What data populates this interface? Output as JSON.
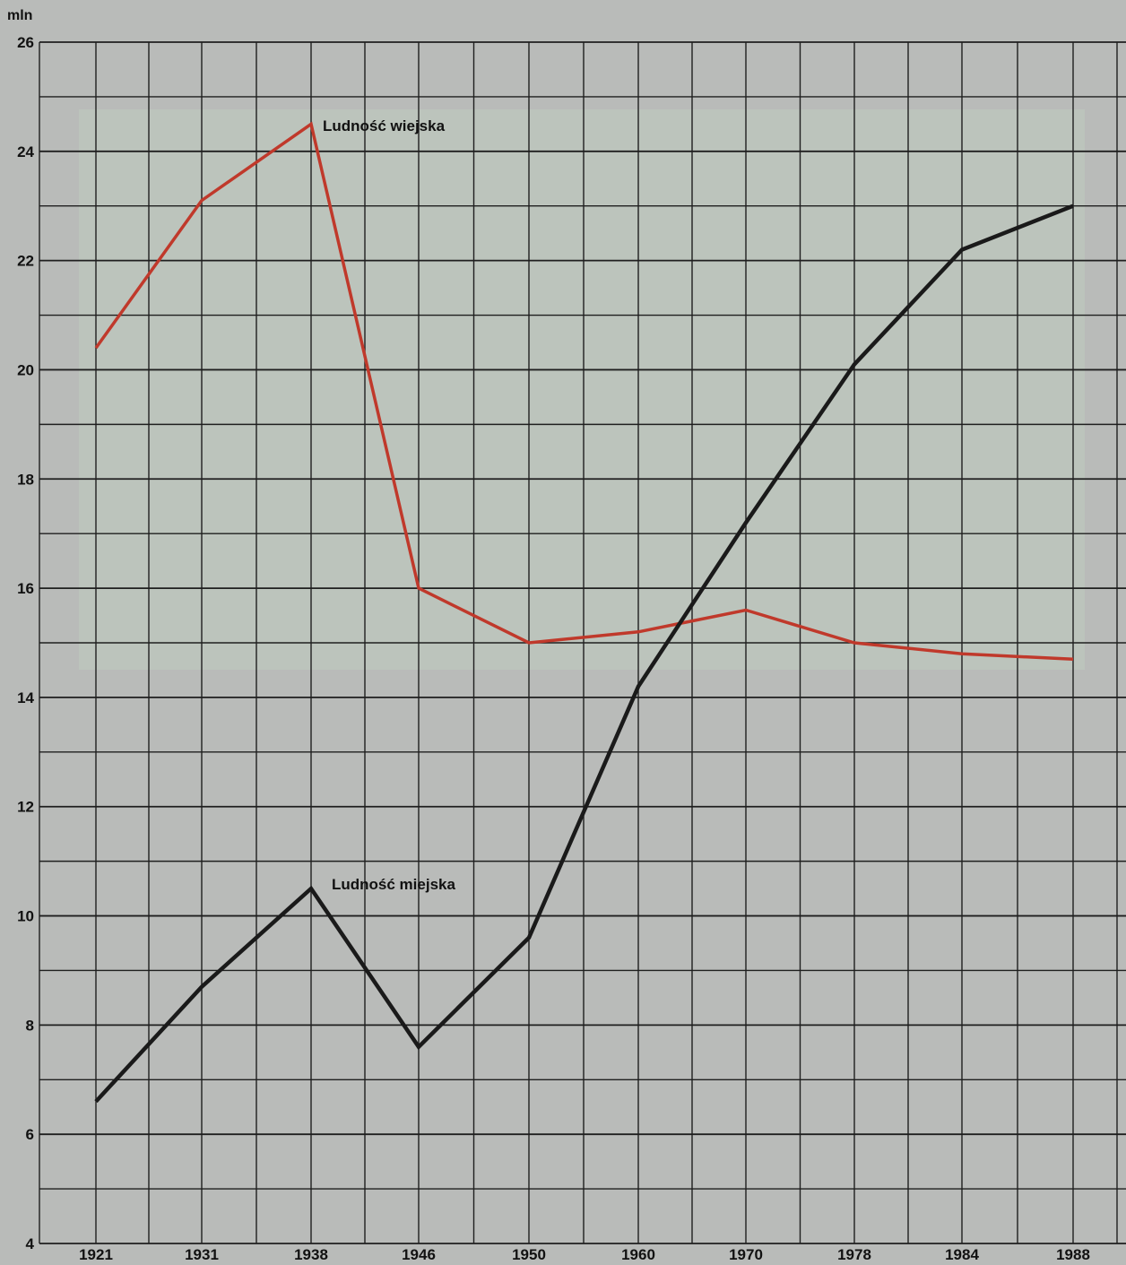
{
  "chart_data": {
    "type": "line",
    "y_unit": "mln",
    "x": [
      "1921",
      "1931",
      "1938",
      "1946",
      "1950",
      "1960",
      "1970",
      "1978",
      "1984",
      "1988"
    ],
    "ylim": [
      4,
      26
    ],
    "y_ticks": [
      4,
      6,
      8,
      10,
      12,
      14,
      16,
      18,
      20,
      22,
      24,
      26
    ],
    "grid": true,
    "series": [
      {
        "name": "Ludność wiejska",
        "color": "#c0392b",
        "values": [
          20.4,
          23.1,
          24.5,
          16.0,
          15.0,
          15.2,
          15.6,
          15.0,
          14.8,
          14.7
        ]
      },
      {
        "name": "Ludność miejska",
        "color": "#1a1a1a",
        "values": [
          6.6,
          8.7,
          10.5,
          7.6,
          9.6,
          14.2,
          17.2,
          20.1,
          22.2,
          23.0
        ]
      }
    ],
    "colors": {
      "page_background": "#b9bbb9",
      "upper_panel": "#bcc4bc",
      "grid": "#1f1f1f"
    }
  }
}
